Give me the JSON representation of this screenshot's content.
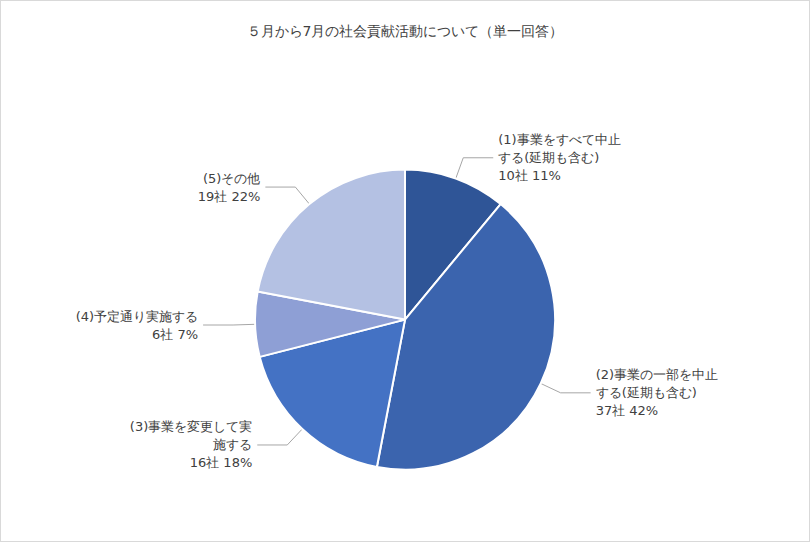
{
  "chart_data": {
    "type": "pie",
    "title": "５月から7月の社会貢献活動について（単一回答）",
    "categories": [
      "(1)事業をすべて中止する(延期も含む)",
      "(2)事業の一部を中止する(延期も含む)",
      "(3)事業を変更して実施する",
      "(4)予定通り実施する",
      "(5)その他"
    ],
    "values": [
      11,
      42,
      18,
      7,
      22
    ],
    "value_labels": [
      "10社 11%",
      "37社 42%",
      "16社 18%",
      "6社 7%",
      "19社 22%"
    ],
    "colors": [
      "#2f5597",
      "#3b64ae",
      "#4472c4",
      "#8e9fd5",
      "#b4c1e3"
    ],
    "data_labels": true
  }
}
